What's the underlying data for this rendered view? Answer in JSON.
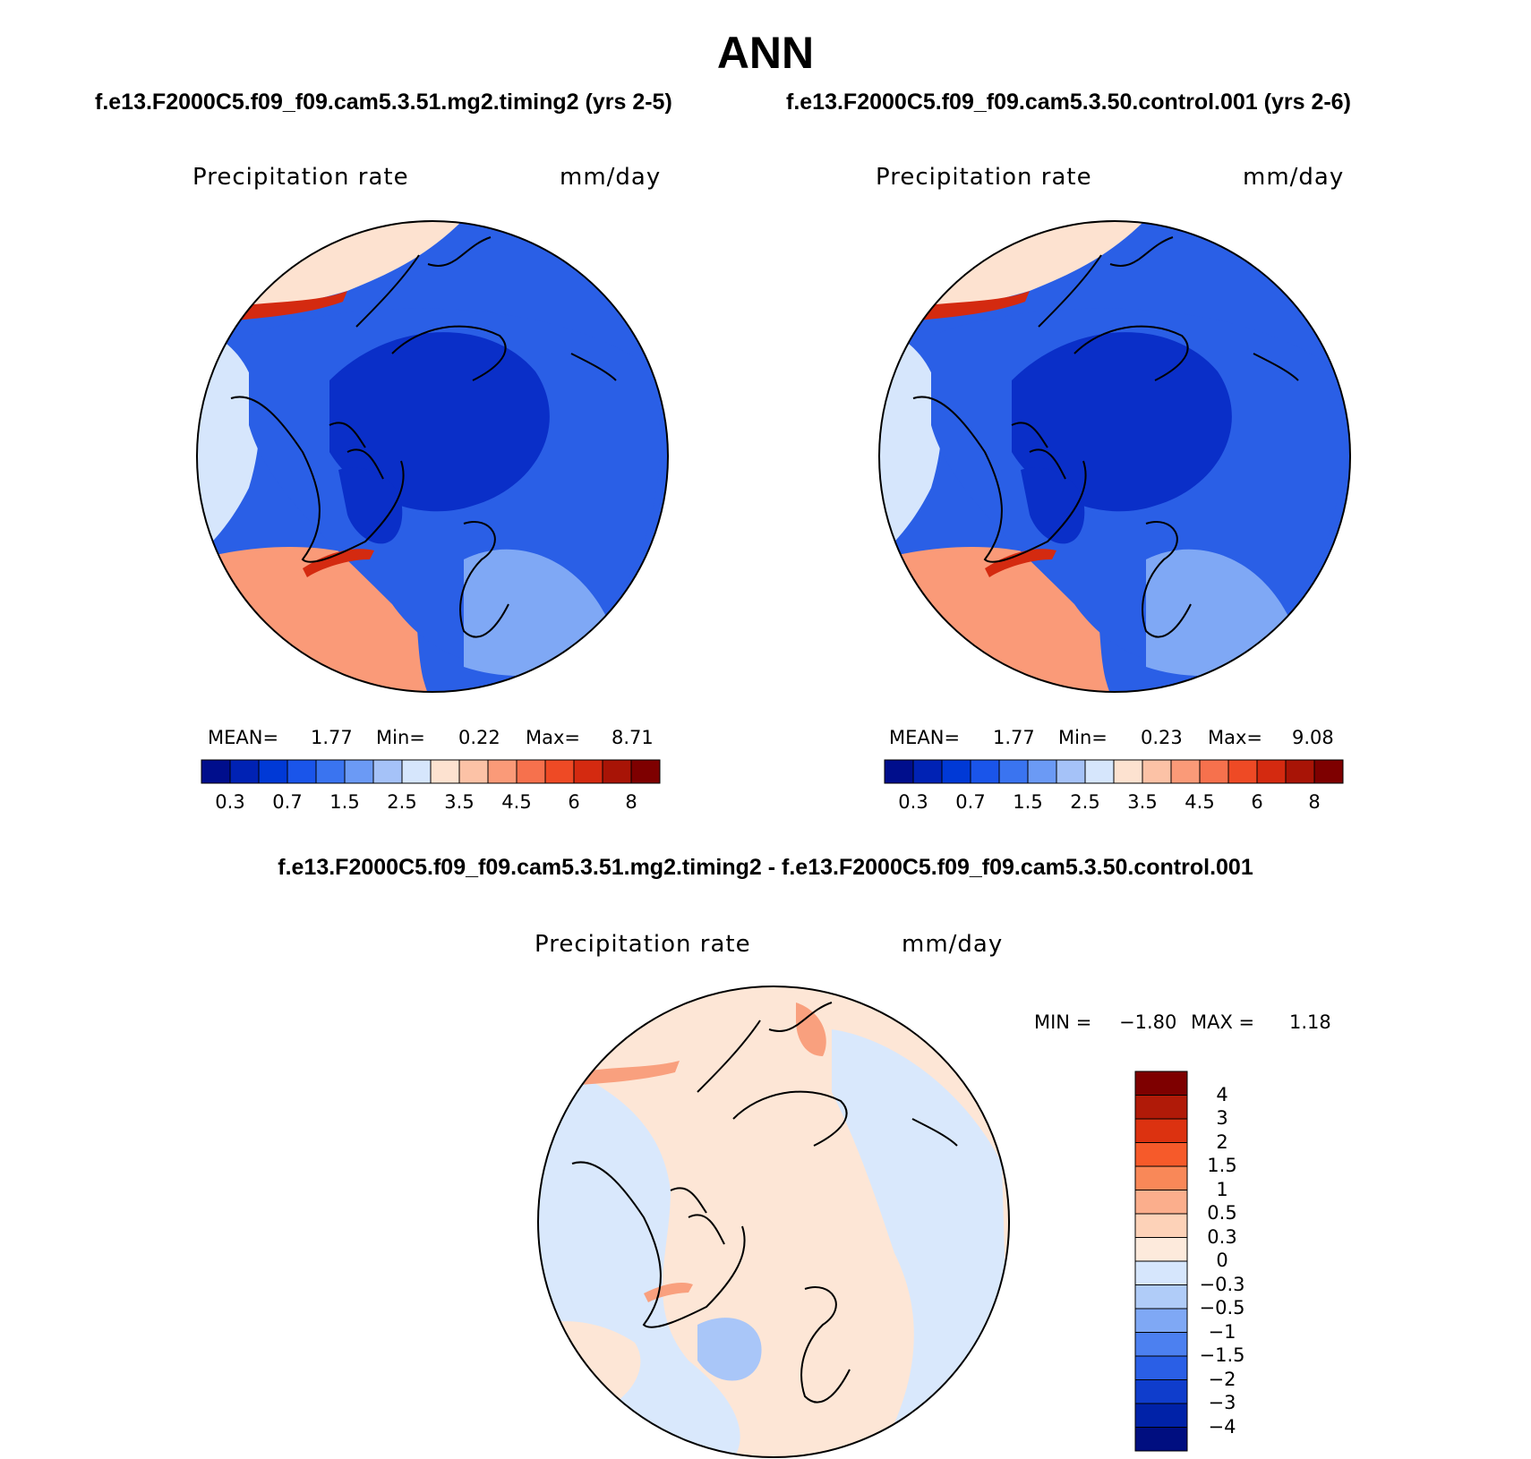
{
  "title": "ANN",
  "panels": [
    {
      "case_title": "f.e13.F2000C5.f09_f09.cam5.3.51.mg2.timing2 (yrs 2-5)",
      "variable": "Precipitation rate",
      "units": "mm/day",
      "stats": {
        "mean_label": "MEAN=",
        "mean": "1.77",
        "min_label": "Min=",
        "min": "0.22",
        "max_label": "Max=",
        "max": "8.71"
      }
    },
    {
      "case_title": "f.e13.F2000C5.f09_f09.cam5.3.50.control.001 (yrs 2-6)",
      "variable": "Precipitation rate",
      "units": "mm/day",
      "stats": {
        "mean_label": "MEAN=",
        "mean": "1.77",
        "min_label": "Min=",
        "min": "0.23",
        "max_label": "Max=",
        "max": "9.08"
      }
    }
  ],
  "abs_colorbar": {
    "ticks": [
      "0.3",
      "0.7",
      "1.5",
      "2.5",
      "3.5",
      "4.5",
      "6",
      "8"
    ],
    "colors": [
      "#000e8c",
      "#0022b4",
      "#0039d6",
      "#1a55ea",
      "#3a74f0",
      "#6b9af5",
      "#a5c2f8",
      "#d6e6fc",
      "#fde2d0",
      "#fcc2a6",
      "#fa9a78",
      "#f6714d",
      "#ee4a25",
      "#d42a10",
      "#a81406",
      "#7e0000"
    ]
  },
  "diff_panel": {
    "case_title": "f.e13.F2000C5.f09_f09.cam5.3.51.mg2.timing2 - f.e13.F2000C5.f09_f09.cam5.3.50.control.001",
    "variable": "Precipitation rate",
    "units": "mm/day",
    "stats": {
      "min_label": "MIN =",
      "min": "−1.80",
      "max_label": "MAX =",
      "max": "1.18"
    }
  },
  "diff_colorbar": {
    "ticks": [
      "4",
      "3",
      "2",
      "1.5",
      "1",
      "0.5",
      "0.3",
      "0",
      "−0.3",
      "−0.5",
      "−1",
      "−1.5",
      "−2",
      "−3",
      "−4"
    ],
    "colors": [
      "#7e0000",
      "#b01a08",
      "#dc3210",
      "#f65a2a",
      "#f98858",
      "#fbae8c",
      "#fdd2b8",
      "#fdeadc",
      "#d6e6fc",
      "#b0ccf8",
      "#7fa8f5",
      "#4c80f0",
      "#2a5fe6",
      "#0f3dcc",
      "#0022a8",
      "#000e80"
    ]
  },
  "map_colors": {
    "deep_blue": "#0a2fc8",
    "mid_blue": "#2a5fe6",
    "light_blue": "#7fa8f5",
    "pale_blue": "#d6e6fc",
    "peach": "#fde2d0",
    "salmon": "#fa9a78",
    "red": "#d42a10",
    "diff_pos": "#fde6d6",
    "diff_neg": "#d9e8fc",
    "diff_neg_strong": "#a9c6f8",
    "diff_pos_strong": "#f9a07e"
  }
}
